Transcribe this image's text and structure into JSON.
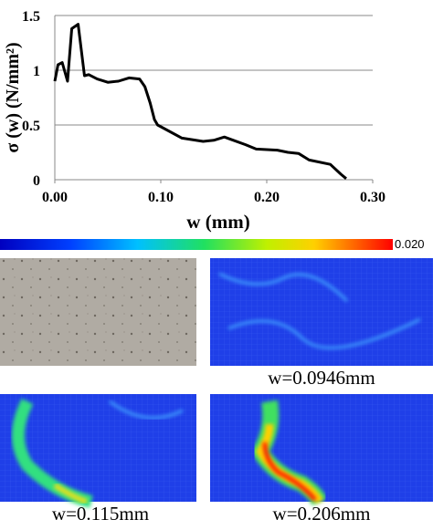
{
  "chart_data": {
    "type": "line",
    "x_label": "w (mm)",
    "y_label": "σ (w) (N/mm²)",
    "x": [
      0,
      0.003,
      0.007,
      0.012,
      0.016,
      0.022,
      0.028,
      0.032,
      0.04,
      0.05,
      0.06,
      0.07,
      0.08,
      0.085,
      0.09,
      0.094,
      0.097,
      0.12,
      0.14,
      0.15,
      0.16,
      0.18,
      0.19,
      0.21,
      0.22,
      0.23,
      0.24,
      0.26,
      0.27,
      0.275
    ],
    "series": [
      {
        "color": "#000000",
        "values": [
          0.9,
          1.05,
          1.07,
          0.9,
          1.38,
          1.42,
          0.95,
          0.96,
          0.92,
          0.89,
          0.9,
          0.93,
          0.92,
          0.85,
          0.7,
          0.55,
          0.5,
          0.38,
          0.35,
          0.36,
          0.39,
          0.32,
          0.28,
          0.27,
          0.25,
          0.24,
          0.18,
          0.14,
          0.05,
          0.01
        ]
      }
    ],
    "xlim": [
      0,
      0.3
    ],
    "ylim": [
      0,
      1.5
    ],
    "xticks": [
      {
        "value": 0,
        "label": "0.00"
      },
      {
        "value": 0.1,
        "label": "0.10"
      },
      {
        "value": 0.2,
        "label": "0.20"
      },
      {
        "value": 0.3,
        "label": "0.30"
      }
    ],
    "yticks": [
      0,
      0.5,
      1,
      1.5
    ],
    "grid": true
  },
  "colorbar": {
    "max_label": "0.020"
  },
  "panels": [
    {
      "caption": "w=0.0946mm"
    },
    {
      "caption": "w=0.115mm"
    },
    {
      "caption": "w=0.206mm"
    }
  ]
}
